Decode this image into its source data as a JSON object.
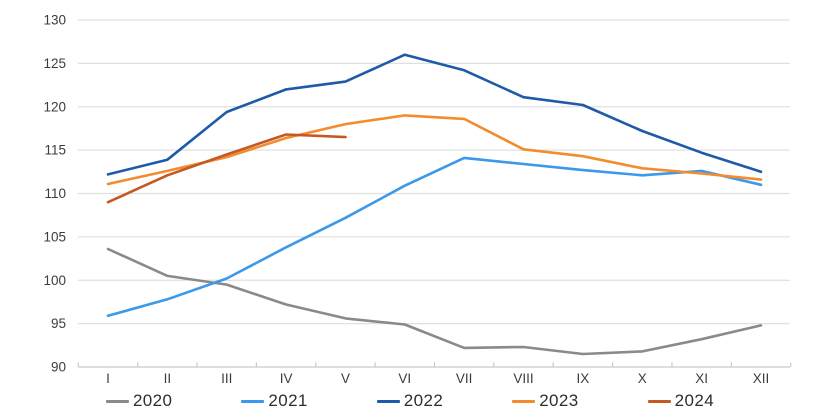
{
  "chart_data": {
    "type": "line",
    "title": "",
    "x_categories": [
      "I",
      "II",
      "III",
      "IV",
      "V",
      "VI",
      "VII",
      "VIII",
      "IX",
      "X",
      "XI",
      "XII"
    ],
    "ylim": [
      90,
      130
    ],
    "y_ticks": [
      90,
      95,
      100,
      105,
      110,
      115,
      120,
      125,
      130
    ],
    "grid": "horizontal",
    "legend_position": "bottom",
    "series": [
      {
        "name": "2020",
        "color": "#8a8a8a",
        "values": [
          103.6,
          100.5,
          99.5,
          97.2,
          95.6,
          94.9,
          92.2,
          92.3,
          91.5,
          91.8,
          93.2,
          94.8
        ]
      },
      {
        "name": "2021",
        "color": "#3c99e9",
        "values": [
          95.9,
          97.8,
          100.2,
          103.8,
          107.2,
          110.9,
          114.1,
          113.4,
          112.7,
          112.1,
          112.6,
          111.0
        ]
      },
      {
        "name": "2022",
        "color": "#1e5aa8",
        "values": [
          112.2,
          113.9,
          119.4,
          122.0,
          122.9,
          126.0,
          124.2,
          121.1,
          120.2,
          117.2,
          114.7,
          112.5
        ]
      },
      {
        "name": "2023",
        "color": "#f38b2f",
        "values": [
          111.1,
          112.6,
          114.2,
          116.4,
          118.0,
          119.0,
          118.6,
          115.1,
          114.3,
          112.9,
          112.3,
          111.6
        ]
      },
      {
        "name": "2024",
        "color": "#c45a21",
        "values": [
          109.0,
          112.1,
          114.5,
          116.8,
          116.5
        ]
      }
    ]
  },
  "colors": {
    "background": "#ffffff",
    "gridline": "#e0e0e0",
    "axis_line": "#c9c9c9",
    "tick_mark": "#c9c9c9",
    "axis_text": "#3c3c3c",
    "legend_text": "#2e2e2e"
  }
}
